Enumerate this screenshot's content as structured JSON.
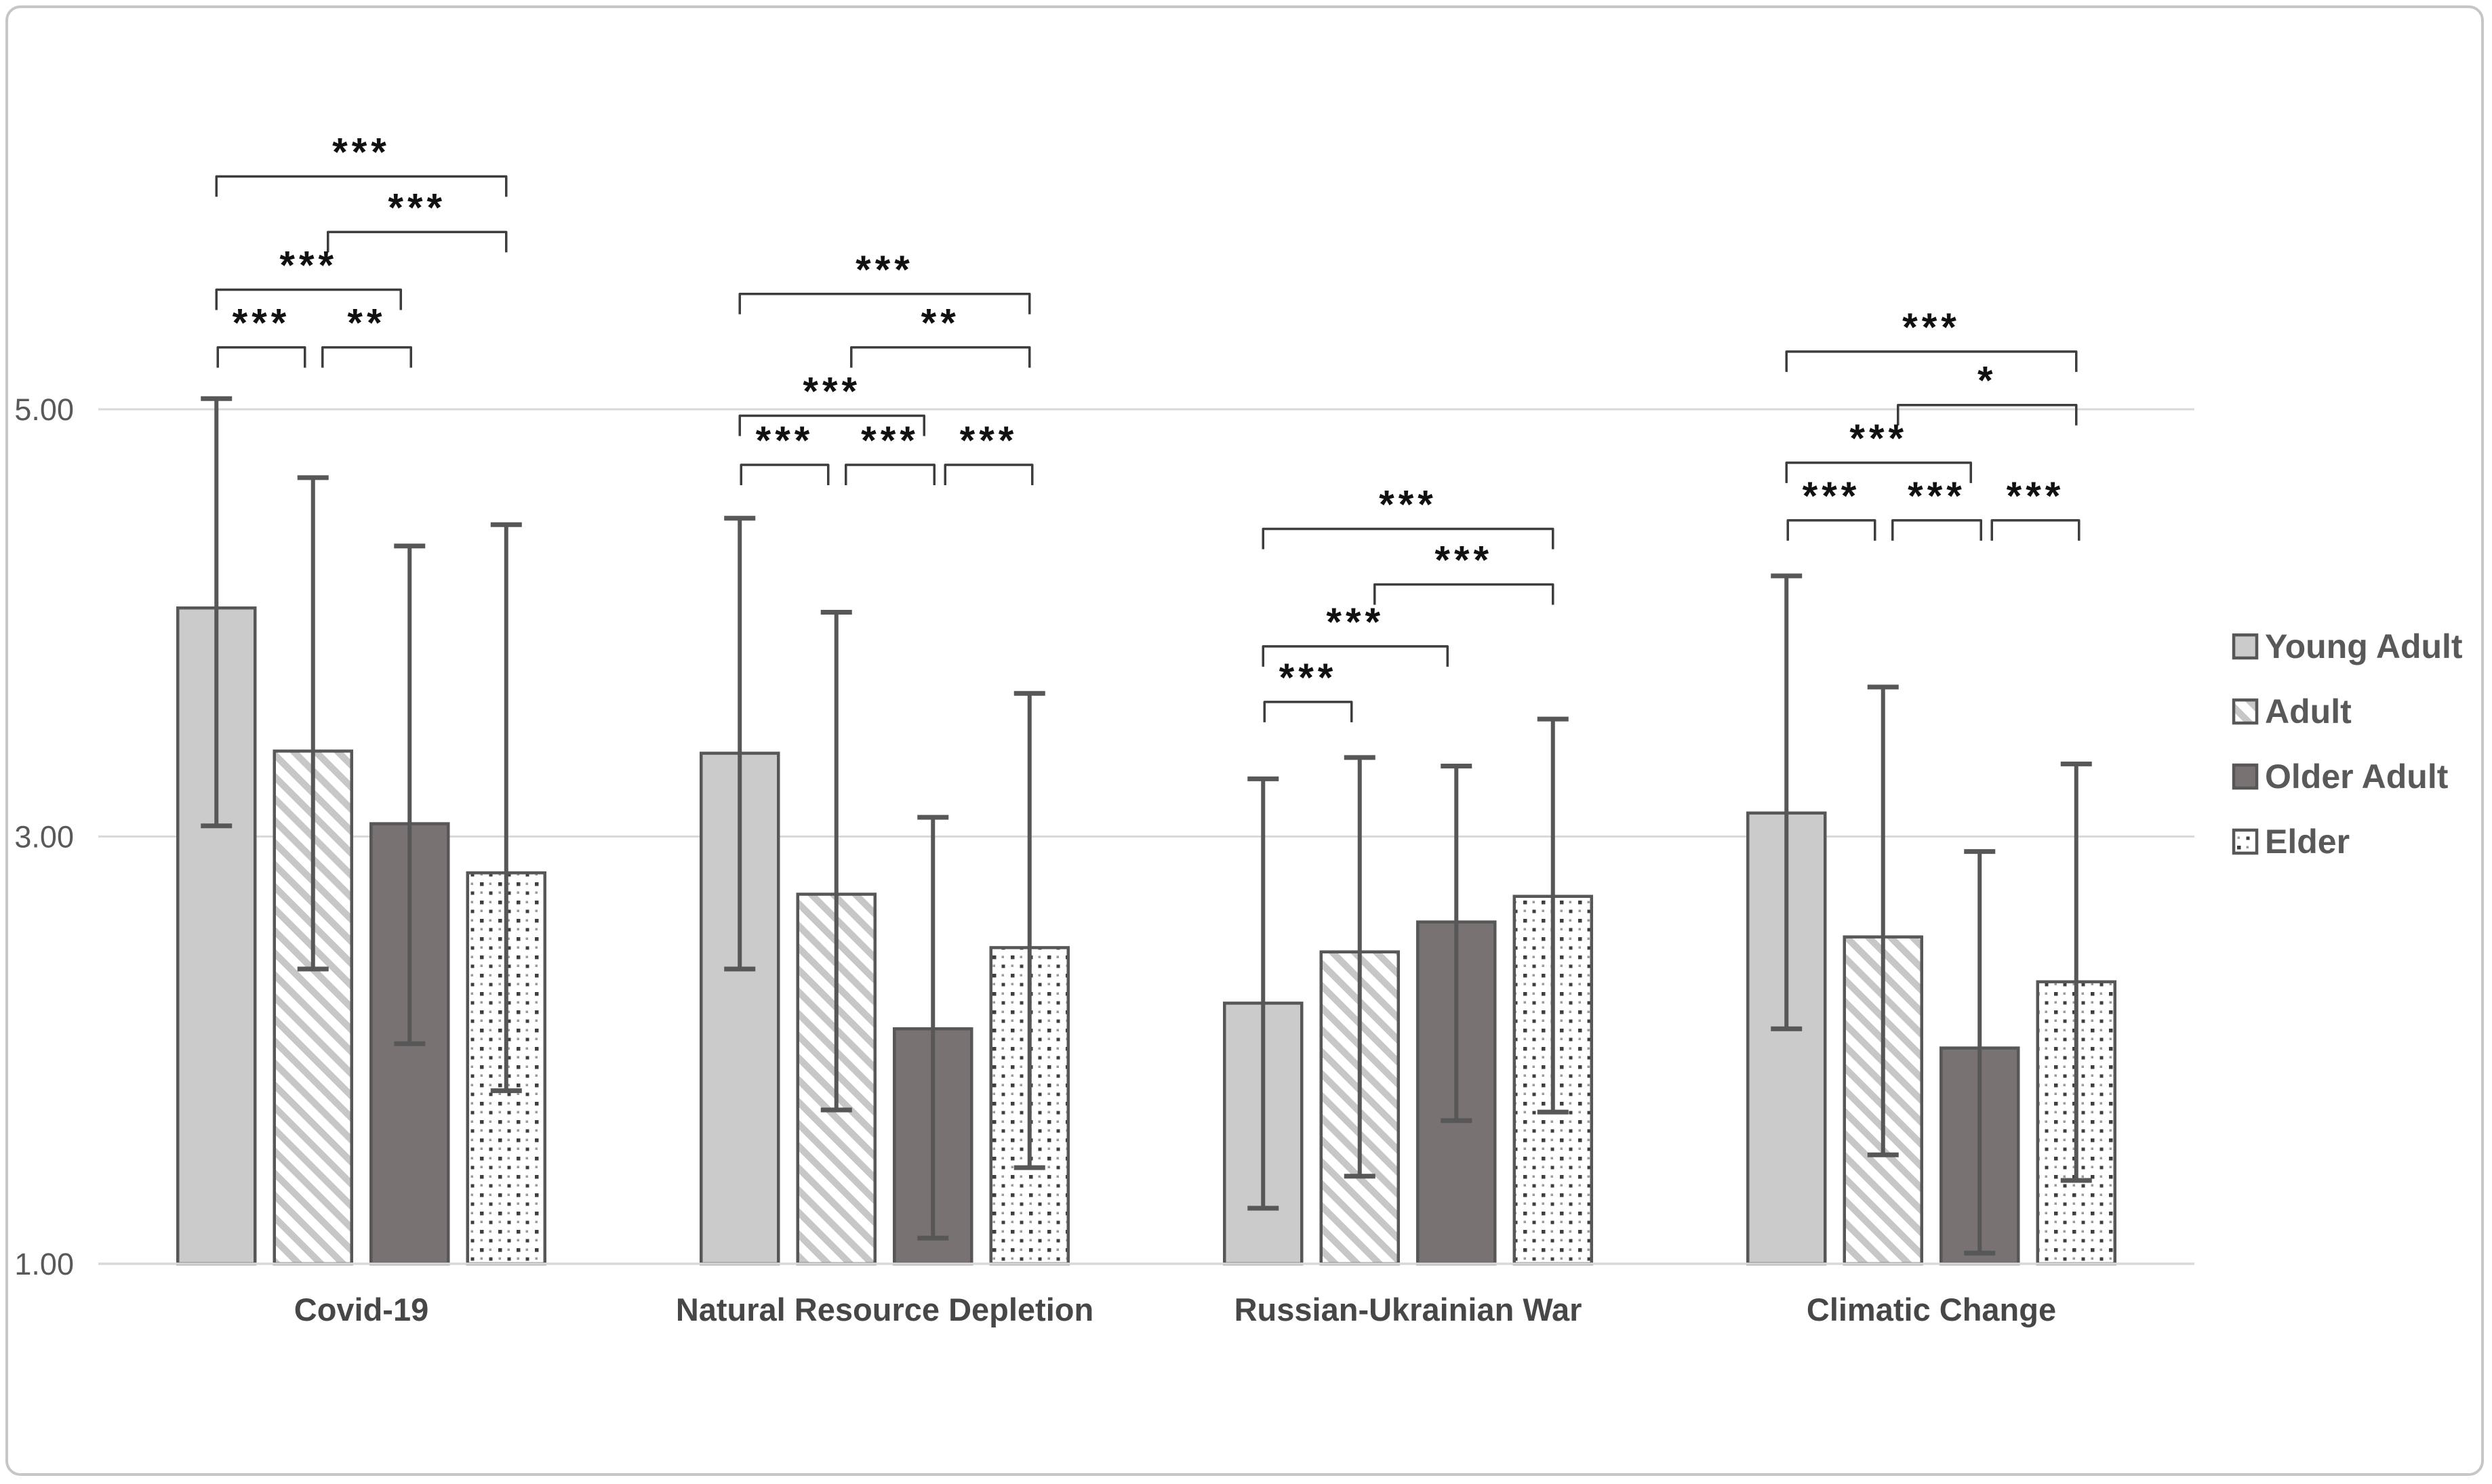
{
  "figure": {
    "border_color": "#c6c6c6",
    "background_color": "#ffffff"
  },
  "colors": {
    "bar_light_fill": "#cbcbcb",
    "bar_dark_fill": "#787272",
    "stripe_color": "#c7c7c7",
    "dot_dark": "#3f3f3f",
    "dot_light": "#9a9a9a",
    "bar_outline": "#575757",
    "error_bar": "#575757",
    "gridline": "#d9d9d9",
    "axis_line": "#d9d9d9",
    "tick_text": "#595959",
    "category_text": "#474747",
    "legend_text": "#595959",
    "bracket": "#3d3d3d",
    "significance_text": "#111111"
  },
  "chart_data": {
    "type": "bar",
    "title": "",
    "xlabel": "",
    "ylabel": "",
    "ylim": [
      1.0,
      6.3
    ],
    "grid": "horizontal",
    "legend_position": "right",
    "categories": [
      "Covid-19",
      "Natural Resource Depletion",
      "Russian-Ukrainian War",
      "Climatic Change"
    ],
    "y_ticks": [
      {
        "label": "5.00",
        "value": 5.0
      },
      {
        "label": "3.00",
        "value": 3.0
      },
      {
        "label": "1.00",
        "value": 1.0
      }
    ],
    "gridline_values": [
      5.0,
      3.0
    ],
    "series": [
      {
        "name": "Young Adult",
        "style": "solid-light",
        "values": [
          4.07,
          3.39,
          2.22,
          3.11
        ],
        "err_low": [
          3.05,
          2.38,
          1.26,
          2.1
        ],
        "err_high": [
          5.05,
          4.49,
          3.27,
          4.22
        ]
      },
      {
        "name": "Adult",
        "style": "diagonal-stripes",
        "values": [
          3.4,
          2.73,
          2.46,
          2.53
        ],
        "err_low": [
          2.38,
          1.72,
          1.41,
          1.51
        ],
        "err_high": [
          4.68,
          4.05,
          3.37,
          3.7
        ]
      },
      {
        "name": "Older Adult",
        "style": "solid-dark",
        "values": [
          3.06,
          2.1,
          2.6,
          2.01
        ],
        "err_low": [
          2.03,
          1.12,
          1.67,
          1.05
        ],
        "err_high": [
          4.36,
          3.09,
          3.33,
          2.93
        ]
      },
      {
        "name": "Elder",
        "style": "dots",
        "values": [
          2.83,
          2.48,
          2.72,
          2.32
        ],
        "err_low": [
          1.81,
          1.45,
          1.71,
          1.39
        ],
        "err_high": [
          4.46,
          3.67,
          3.55,
          3.34
        ]
      }
    ],
    "significance_brackets": [
      {
        "category": 0,
        "a": 0,
        "b": 3,
        "label": "***",
        "y": 6.09
      },
      {
        "category": 0,
        "a": 1,
        "b": 3,
        "label": "***",
        "y": 5.83
      },
      {
        "category": 0,
        "a": 0,
        "b": 2,
        "label": "***",
        "y": 5.56
      },
      {
        "category": 0,
        "a": 0,
        "b": 1,
        "label": "***",
        "y": 5.29
      },
      {
        "category": 0,
        "a": 1,
        "b": 2,
        "label": "**",
        "y": 5.29
      },
      {
        "category": 1,
        "a": 0,
        "b": 3,
        "label": "***",
        "y": 5.54
      },
      {
        "category": 1,
        "a": 1,
        "b": 3,
        "label": "**",
        "y": 5.29
      },
      {
        "category": 1,
        "a": 0,
        "b": 2,
        "label": "***",
        "y": 4.97
      },
      {
        "category": 1,
        "a": 0,
        "b": 1,
        "label": "***",
        "y": 4.74
      },
      {
        "category": 1,
        "a": 1,
        "b": 2,
        "label": "***",
        "y": 4.74
      },
      {
        "category": 1,
        "a": 2,
        "b": 3,
        "label": "***",
        "y": 4.74
      },
      {
        "category": 2,
        "a": 0,
        "b": 3,
        "label": "***",
        "y": 4.44
      },
      {
        "category": 2,
        "a": 1,
        "b": 3,
        "label": "***",
        "y": 4.18
      },
      {
        "category": 2,
        "a": 0,
        "b": 2,
        "label": "***",
        "y": 3.89
      },
      {
        "category": 2,
        "a": 0,
        "b": 1,
        "label": "***",
        "y": 3.63
      },
      {
        "category": 3,
        "a": 0,
        "b": 3,
        "label": "***",
        "y": 5.27
      },
      {
        "category": 3,
        "a": 1,
        "b": 3,
        "label": "*",
        "y": 5.02
      },
      {
        "category": 3,
        "a": 0,
        "b": 2,
        "label": "***",
        "y": 4.75
      },
      {
        "category": 3,
        "a": 0,
        "b": 1,
        "label": "***",
        "y": 4.48
      },
      {
        "category": 3,
        "a": 1,
        "b": 2,
        "label": "***",
        "y": 4.48
      },
      {
        "category": 3,
        "a": 2,
        "b": 3,
        "label": "***",
        "y": 4.48
      }
    ],
    "legend": {
      "items": [
        "Young Adult",
        "Adult",
        "Older Adult",
        "Elder"
      ]
    }
  }
}
